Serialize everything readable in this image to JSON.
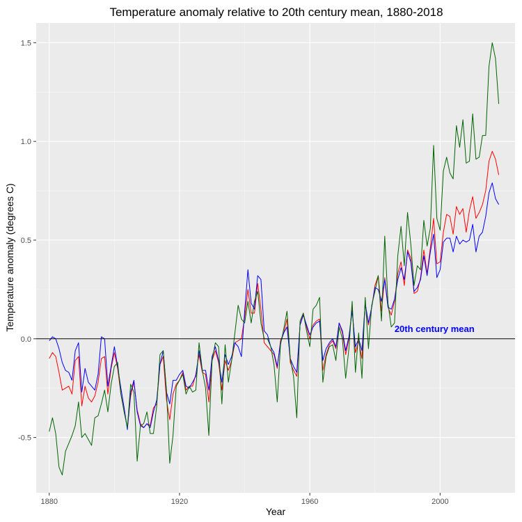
{
  "chart_data": {
    "type": "line",
    "title": "Temperature anomaly relative to 20th century mean, 1880-2018",
    "xlabel": "Year",
    "ylabel": "Temperature anomaly (degrees C)",
    "xlim": [
      1876,
      2023
    ],
    "ylim": [
      -0.78,
      1.6
    ],
    "x_ticks": [
      1880,
      1920,
      1960,
      2000
    ],
    "y_ticks": [
      -0.5,
      0.0,
      0.5,
      1.0,
      1.5
    ],
    "x_tick_labels": [
      "1880",
      "1920",
      "1960",
      "2000"
    ],
    "y_tick_labels": [
      "-0.5",
      "0.0",
      "0.5",
      "1.0",
      "1.5"
    ],
    "grid": true,
    "background": "#ebebeb",
    "reference_line": {
      "y": 0.0,
      "label": "20th century mean",
      "label_x": 1986,
      "color": "#000000",
      "label_color": "#0000ff"
    },
    "x": [
      1880,
      1881,
      1882,
      1883,
      1884,
      1885,
      1886,
      1887,
      1888,
      1889,
      1890,
      1891,
      1892,
      1893,
      1894,
      1895,
      1896,
      1897,
      1898,
      1899,
      1900,
      1901,
      1902,
      1903,
      1904,
      1905,
      1906,
      1907,
      1908,
      1909,
      1910,
      1911,
      1912,
      1913,
      1914,
      1915,
      1916,
      1917,
      1918,
      1919,
      1920,
      1921,
      1922,
      1923,
      1924,
      1925,
      1926,
      1927,
      1928,
      1929,
      1930,
      1931,
      1932,
      1933,
      1934,
      1935,
      1936,
      1937,
      1938,
      1939,
      1940,
      1941,
      1942,
      1943,
      1944,
      1945,
      1946,
      1947,
      1948,
      1949,
      1950,
      1951,
      1952,
      1953,
      1954,
      1955,
      1956,
      1957,
      1958,
      1959,
      1960,
      1961,
      1962,
      1963,
      1964,
      1965,
      1966,
      1967,
      1968,
      1969,
      1970,
      1971,
      1972,
      1973,
      1974,
      1975,
      1976,
      1977,
      1978,
      1979,
      1980,
      1981,
      1982,
      1983,
      1984,
      1985,
      1986,
      1987,
      1988,
      1989,
      1990,
      1991,
      1992,
      1993,
      1994,
      1995,
      1996,
      1997,
      1998,
      1999,
      2000,
      2001,
      2002,
      2003,
      2004,
      2005,
      2006,
      2007,
      2008,
      2009,
      2010,
      2011,
      2012,
      2013,
      2014,
      2015,
      2016,
      2017,
      2018
    ],
    "series": [
      {
        "color": "#ff0000",
        "values": [
          -0.1,
          -0.07,
          -0.09,
          -0.17,
          -0.26,
          -0.25,
          -0.24,
          -0.28,
          -0.11,
          -0.09,
          -0.34,
          -0.24,
          -0.3,
          -0.32,
          -0.29,
          -0.22,
          -0.1,
          -0.09,
          -0.28,
          -0.15,
          -0.07,
          -0.15,
          -0.28,
          -0.37,
          -0.45,
          -0.29,
          -0.22,
          -0.36,
          -0.43,
          -0.45,
          -0.43,
          -0.44,
          -0.35,
          -0.33,
          -0.13,
          -0.09,
          -0.31,
          -0.41,
          -0.28,
          -0.23,
          -0.21,
          -0.17,
          -0.26,
          -0.24,
          -0.24,
          -0.18,
          -0.08,
          -0.17,
          -0.18,
          -0.32,
          -0.11,
          -0.06,
          -0.12,
          -0.26,
          -0.11,
          -0.16,
          -0.11,
          -0.02,
          -0.01,
          0.0,
          0.11,
          0.25,
          0.13,
          0.13,
          0.28,
          0.15,
          -0.02,
          -0.04,
          -0.06,
          -0.08,
          -0.15,
          -0.01,
          0.03,
          0.1,
          -0.12,
          -0.16,
          -0.19,
          0.07,
          0.13,
          0.06,
          0.0,
          0.07,
          0.09,
          0.1,
          -0.16,
          -0.08,
          -0.03,
          -0.01,
          -0.05,
          0.08,
          0.03,
          -0.08,
          0.0,
          0.16,
          -0.07,
          -0.01,
          -0.1,
          0.18,
          0.07,
          0.16,
          0.27,
          0.32,
          0.14,
          0.31,
          0.16,
          0.12,
          0.19,
          0.33,
          0.39,
          0.27,
          0.45,
          0.41,
          0.23,
          0.24,
          0.31,
          0.45,
          0.33,
          0.46,
          0.61,
          0.38,
          0.39,
          0.54,
          0.63,
          0.62,
          0.53,
          0.67,
          0.63,
          0.66,
          0.54,
          0.65,
          0.72,
          0.61,
          0.64,
          0.68,
          0.75,
          0.9,
          0.95,
          0.91,
          0.83
        ]
      },
      {
        "color": "#0000ff",
        "values": [
          -0.01,
          0.01,
          0.0,
          -0.05,
          -0.12,
          -0.16,
          -0.17,
          -0.21,
          -0.06,
          -0.02,
          -0.27,
          -0.15,
          -0.22,
          -0.24,
          -0.26,
          -0.18,
          0.01,
          0.0,
          -0.24,
          -0.14,
          -0.04,
          -0.14,
          -0.25,
          -0.35,
          -0.46,
          -0.27,
          -0.21,
          -0.37,
          -0.44,
          -0.45,
          -0.43,
          -0.45,
          -0.37,
          -0.31,
          -0.13,
          -0.06,
          -0.27,
          -0.33,
          -0.21,
          -0.21,
          -0.18,
          -0.16,
          -0.24,
          -0.25,
          -0.22,
          -0.19,
          -0.06,
          -0.16,
          -0.16,
          -0.26,
          -0.09,
          -0.04,
          -0.11,
          -0.22,
          -0.08,
          -0.13,
          -0.09,
          -0.02,
          -0.04,
          -0.09,
          0.14,
          0.35,
          0.18,
          0.15,
          0.32,
          0.3,
          0.04,
          0.02,
          -0.04,
          -0.07,
          -0.14,
          -0.02,
          0.03,
          0.06,
          -0.1,
          -0.14,
          -0.17,
          0.07,
          0.12,
          0.07,
          0.02,
          0.06,
          0.08,
          0.09,
          -0.11,
          -0.05,
          -0.02,
          0.0,
          -0.04,
          0.08,
          0.04,
          -0.06,
          0.01,
          0.14,
          -0.04,
          0.0,
          -0.06,
          0.18,
          0.08,
          0.16,
          0.26,
          0.25,
          0.19,
          0.3,
          0.16,
          0.15,
          0.2,
          0.3,
          0.36,
          0.3,
          0.44,
          0.39,
          0.24,
          0.26,
          0.3,
          0.42,
          0.32,
          0.44,
          0.53,
          0.31,
          0.35,
          0.49,
          0.51,
          0.51,
          0.44,
          0.52,
          0.48,
          0.5,
          0.49,
          0.5,
          0.58,
          0.44,
          0.52,
          0.54,
          0.62,
          0.74,
          0.79,
          0.71,
          0.68
        ]
      },
      {
        "color": "#006400",
        "values": [
          -0.47,
          -0.4,
          -0.48,
          -0.65,
          -0.69,
          -0.57,
          -0.53,
          -0.49,
          -0.44,
          -0.32,
          -0.5,
          -0.48,
          -0.51,
          -0.54,
          -0.4,
          -0.39,
          -0.33,
          -0.26,
          -0.37,
          -0.23,
          -0.14,
          -0.12,
          -0.28,
          -0.37,
          -0.45,
          -0.23,
          -0.27,
          -0.62,
          -0.44,
          -0.43,
          -0.37,
          -0.48,
          -0.48,
          -0.34,
          -0.08,
          -0.06,
          -0.26,
          -0.63,
          -0.49,
          -0.24,
          -0.21,
          -0.18,
          -0.28,
          -0.24,
          -0.27,
          -0.26,
          -0.02,
          -0.16,
          -0.25,
          -0.49,
          -0.11,
          -0.02,
          -0.04,
          -0.33,
          -0.03,
          -0.22,
          -0.11,
          0.03,
          0.17,
          0.1,
          0.08,
          0.19,
          0.08,
          0.19,
          0.24,
          0.08,
          0.0,
          0.0,
          -0.04,
          -0.13,
          -0.32,
          -0.03,
          0.05,
          0.14,
          -0.1,
          -0.19,
          -0.4,
          0.09,
          0.13,
          0.04,
          -0.04,
          0.15,
          0.17,
          0.21,
          -0.22,
          -0.09,
          -0.04,
          -0.03,
          -0.11,
          0.06,
          0.0,
          -0.2,
          -0.05,
          0.19,
          -0.17,
          0.03,
          -0.2,
          0.21,
          -0.05,
          0.17,
          0.24,
          0.32,
          0.09,
          0.52,
          0.18,
          0.06,
          0.08,
          0.42,
          0.57,
          0.37,
          0.64,
          0.48,
          0.27,
          0.37,
          0.35,
          0.6,
          0.47,
          0.56,
          0.98,
          0.61,
          0.55,
          0.85,
          0.92,
          0.84,
          0.81,
          1.08,
          0.97,
          1.11,
          0.89,
          0.9,
          1.14,
          0.91,
          0.92,
          1.03,
          1.03,
          1.38,
          1.5,
          1.42,
          1.19
        ]
      }
    ]
  }
}
